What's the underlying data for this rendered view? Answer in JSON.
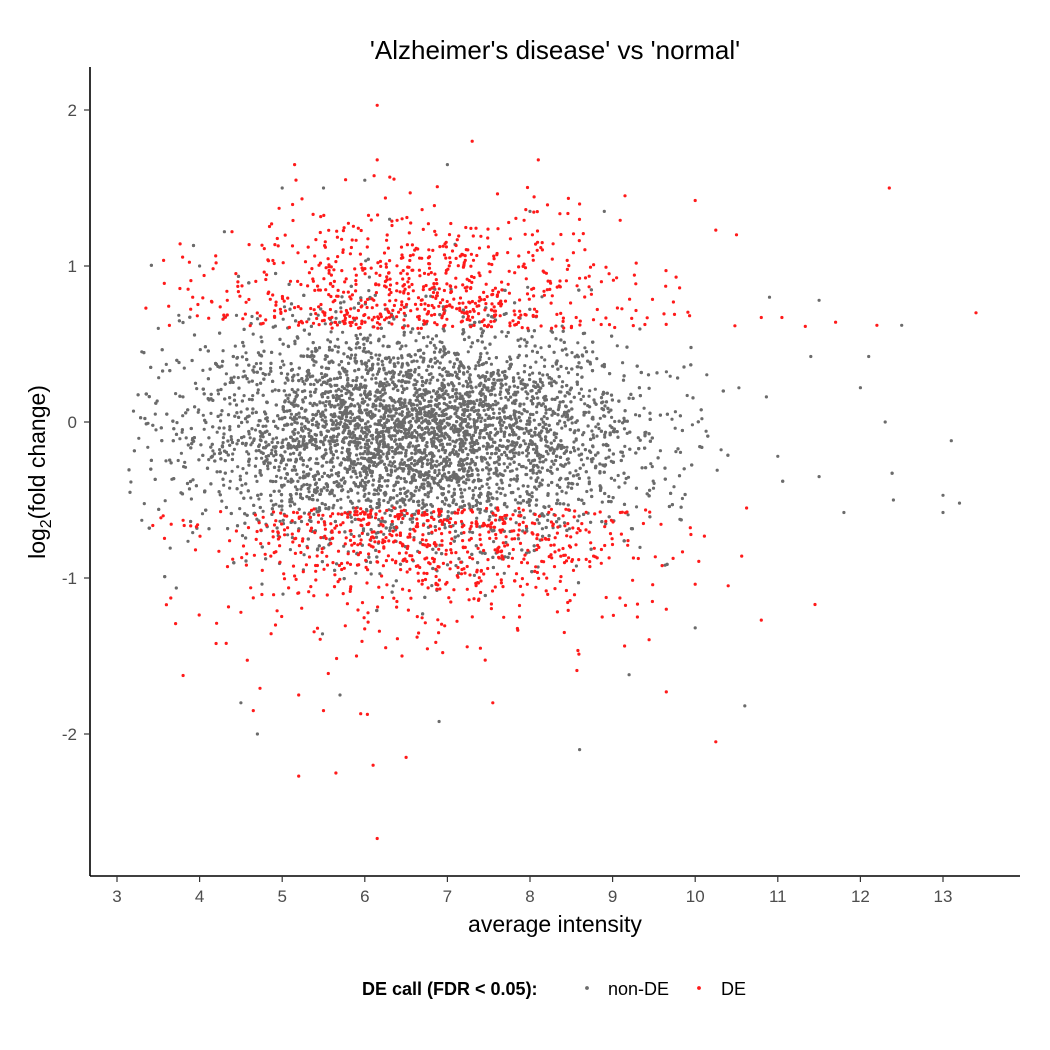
{
  "chart_data": {
    "type": "scatter",
    "title": "'Alzheimer's disease' vs 'normal'",
    "xlabel": "average intensity",
    "ylabel_base": "log",
    "ylabel_sub": "2",
    "ylabel_rest": "(fold change)",
    "xlim": [
      2.7,
      13.9
    ],
    "ylim": [
      -2.9,
      2.25
    ],
    "xticks": [
      3,
      4,
      5,
      6,
      7,
      8,
      9,
      10,
      11,
      12,
      13
    ],
    "yticks": [
      -2,
      -1,
      0,
      1,
      2
    ],
    "grid": false,
    "legend": {
      "position": "bottom",
      "title": "DE call (FDR < 0.05):",
      "entries": [
        {
          "label": "non-DE",
          "color": "#6b6b6b"
        },
        {
          "label": "DE",
          "color": "#ff1a1a"
        }
      ]
    },
    "series": [
      {
        "name": "non-DE",
        "color": "#6b6b6b",
        "note": "dense cloud of non-DE genes; center near x≈6.5, y≈-0.1, spread roughly x 3.1–13.2, y -0.6–0.6 with sparse outliers",
        "points": [
          [
            3.2,
            0.07
          ],
          [
            3.3,
            0.45
          ],
          [
            3.3,
            -0.63
          ],
          [
            3.5,
            0.6
          ],
          [
            4.0,
            1.0
          ],
          [
            4.3,
            1.22
          ],
          [
            4.5,
            -1.8
          ],
          [
            4.7,
            -2.0
          ],
          [
            5.0,
            1.5
          ],
          [
            5.5,
            1.5
          ],
          [
            5.7,
            -1.75
          ],
          [
            6.0,
            1.55
          ],
          [
            6.3,
            1.3
          ],
          [
            7.0,
            1.65
          ],
          [
            8.0,
            1.35
          ],
          [
            8.9,
            1.35
          ],
          [
            9.2,
            -1.62
          ],
          [
            10.0,
            -1.32
          ],
          [
            10.6,
            -1.82
          ],
          [
            10.9,
            0.8
          ],
          [
            11.5,
            0.78
          ],
          [
            12.1,
            0.42
          ],
          [
            12.3,
            0.0
          ],
          [
            12.5,
            0.62
          ],
          [
            13.0,
            -0.47
          ],
          [
            13.0,
            -0.58
          ],
          [
            13.1,
            -0.12
          ],
          [
            13.2,
            -0.52
          ],
          [
            8.6,
            -2.1
          ],
          [
            6.9,
            -1.92
          ],
          [
            11.0,
            -0.22
          ],
          [
            11.5,
            -0.35
          ],
          [
            11.8,
            -0.58
          ],
          [
            12.4,
            -0.5
          ],
          [
            11.4,
            0.42
          ],
          [
            12.0,
            0.22
          ]
        ]
      },
      {
        "name": "DE",
        "color": "#ff1a1a",
        "points": [
          [
            6.15,
            2.03
          ],
          [
            7.3,
            1.8
          ],
          [
            5.15,
            1.65
          ],
          [
            6.15,
            1.68
          ],
          [
            8.1,
            1.68
          ],
          [
            12.35,
            1.5
          ],
          [
            9.15,
            1.45
          ],
          [
            10.0,
            1.42
          ],
          [
            10.25,
            1.23
          ],
          [
            10.5,
            1.2
          ],
          [
            13.4,
            0.7
          ],
          [
            12.2,
            0.62
          ],
          [
            3.35,
            0.73
          ],
          [
            4.2,
            1.02
          ],
          [
            11.7,
            0.64
          ],
          [
            10.8,
            0.67
          ],
          [
            11.05,
            0.67
          ],
          [
            3.8,
            -0.63
          ],
          [
            4.5,
            -1.22
          ],
          [
            4.2,
            -1.42
          ],
          [
            4.65,
            -1.85
          ],
          [
            5.2,
            -2.27
          ],
          [
            5.65,
            -2.25
          ],
          [
            6.1,
            -2.2
          ],
          [
            6.5,
            -2.15
          ],
          [
            6.15,
            -2.67
          ],
          [
            10.25,
            -2.05
          ],
          [
            9.65,
            -1.73
          ],
          [
            10.8,
            -1.27
          ],
          [
            11.45,
            -1.17
          ],
          [
            9.3,
            -1.25
          ],
          [
            9.65,
            -1.2
          ],
          [
            10.4,
            -1.05
          ],
          [
            10.0,
            -1.04
          ],
          [
            7.4,
            -1.45
          ],
          [
            6.45,
            -1.5
          ],
          [
            5.9,
            -1.5
          ],
          [
            5.2,
            -1.75
          ],
          [
            5.5,
            -1.85
          ],
          [
            5.95,
            -1.87
          ],
          [
            7.55,
            -1.8
          ]
        ]
      }
    ]
  }
}
